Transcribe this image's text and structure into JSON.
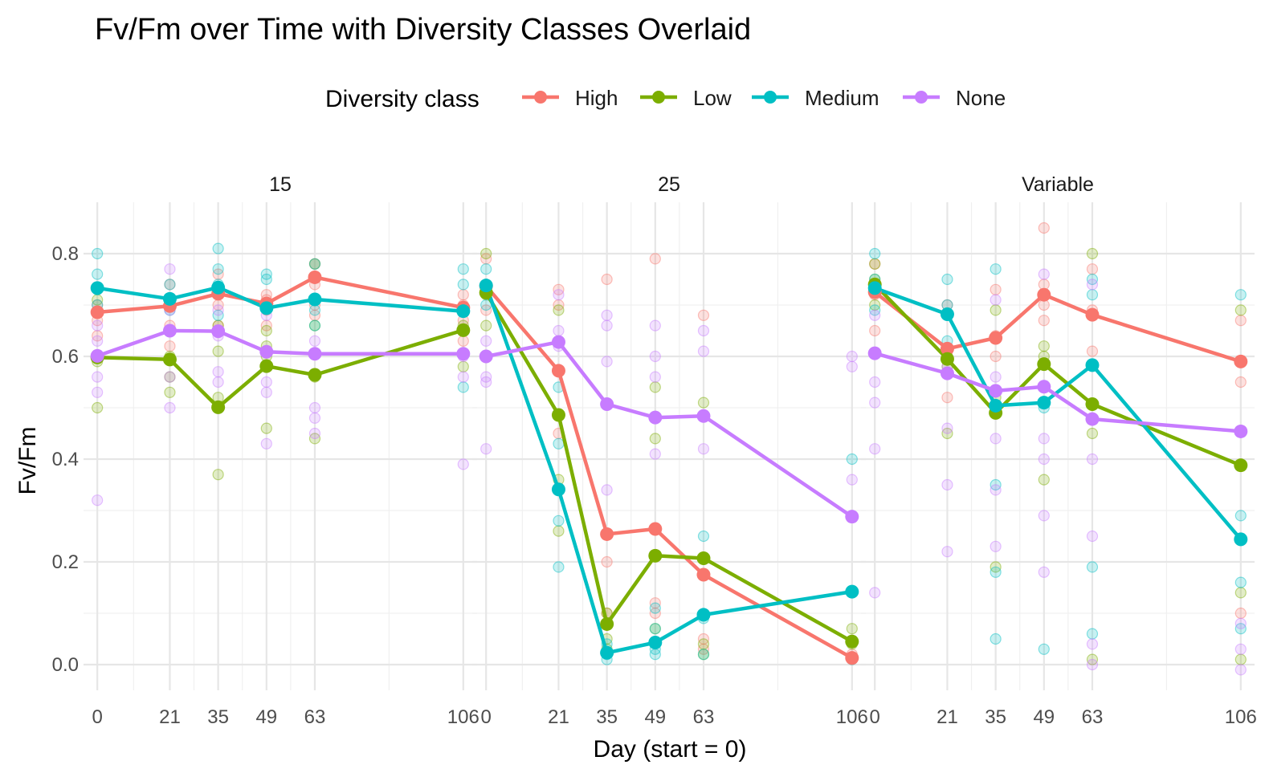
{
  "chart_data": {
    "type": "line",
    "title": "Fv/Fm over Time with Diversity Classes Overlaid",
    "xlabel": "Day (start = 0)",
    "ylabel": "Fv/Fm",
    "legend": {
      "title": "Diversity class",
      "placement": "top",
      "entries": [
        "High",
        "Low",
        "Medium",
        "None"
      ]
    },
    "colors": {
      "High": "#F8766D",
      "Low": "#7CAE00",
      "Medium": "#00BFC4",
      "None": "#C77CFF"
    },
    "x_ticks": [
      0,
      21,
      35,
      49,
      63,
      106
    ],
    "x_tick_labels": [
      "0",
      "21",
      "35",
      "49",
      "63",
      "106"
    ],
    "xlim": [
      -4,
      110
    ],
    "y_ticks": [
      0.0,
      0.2,
      0.4,
      0.6,
      0.8
    ],
    "y_tick_labels": [
      "0.0",
      "0.2",
      "0.4",
      "0.6",
      "0.8"
    ],
    "ylim": [
      -0.05,
      0.9
    ],
    "grid": true,
    "panels": [
      {
        "label": "15",
        "series": [
          {
            "name": "High",
            "x": [
              0,
              21,
              35,
              49,
              63,
              106
            ],
            "y": [
              0.686,
              0.698,
              0.722,
              0.703,
              0.754,
              0.695
            ]
          },
          {
            "name": "Low",
            "x": [
              0,
              21,
              35,
              49,
              63,
              106
            ],
            "y": [
              0.598,
              0.594,
              0.501,
              0.581,
              0.564,
              0.651
            ]
          },
          {
            "name": "Medium",
            "x": [
              0,
              21,
              35,
              49,
              63,
              106
            ],
            "y": [
              0.733,
              0.712,
              0.734,
              0.694,
              0.711,
              0.688
            ]
          },
          {
            "name": "None",
            "x": [
              0,
              21,
              35,
              49,
              63,
              106
            ],
            "y": [
              0.601,
              0.65,
              0.649,
              0.609,
              0.605,
              0.605
            ]
          }
        ],
        "individual_points": [
          {
            "series": "High",
            "x": [
              0,
              0,
              0,
              21,
              21,
              21,
              21,
              35,
              35,
              35,
              35,
              49,
              49,
              49,
              49,
              63,
              63,
              63,
              63,
              106,
              106,
              106,
              106
            ],
            "y": [
              0.64,
              0.67,
              0.7,
              0.62,
              0.66,
              0.7,
              0.74,
              0.66,
              0.7,
              0.73,
              0.76,
              0.66,
              0.69,
              0.71,
              0.72,
              0.68,
              0.7,
              0.74,
              0.78,
              0.63,
              0.67,
              0.7,
              0.72
            ]
          },
          {
            "series": "Low",
            "x": [
              0,
              0,
              0,
              21,
              21,
              21,
              35,
              35,
              35,
              35,
              49,
              49,
              49,
              49,
              63,
              63,
              63,
              63,
              106,
              106,
              106
            ],
            "y": [
              0.5,
              0.59,
              0.71,
              0.53,
              0.56,
              0.6,
              0.37,
              0.52,
              0.61,
              0.66,
              0.46,
              0.6,
              0.65,
              0.62,
              0.44,
              0.56,
              0.66,
              0.78,
              0.58,
              0.65,
              0.66
            ]
          },
          {
            "series": "Medium",
            "x": [
              0,
              0,
              0,
              0,
              21,
              21,
              21,
              35,
              35,
              35,
              35,
              49,
              49,
              49,
              63,
              63,
              63,
              106,
              106,
              106,
              106
            ],
            "y": [
              0.8,
              0.76,
              0.73,
              0.7,
              0.74,
              0.71,
              0.69,
              0.81,
              0.77,
              0.74,
              0.68,
              0.76,
              0.75,
              0.7,
              0.78,
              0.69,
              0.66,
              0.77,
              0.74,
              0.69,
              0.54
            ]
          },
          {
            "series": "None",
            "x": [
              0,
              0,
              0,
              0,
              0,
              21,
              21,
              21,
              21,
              35,
              35,
              35,
              35,
              49,
              49,
              49,
              49,
              63,
              63,
              63,
              63,
              106,
              106,
              106
            ],
            "y": [
              0.32,
              0.53,
              0.56,
              0.63,
              0.66,
              0.5,
              0.56,
              0.69,
              0.77,
              0.55,
              0.57,
              0.64,
              0.69,
              0.43,
              0.53,
              0.55,
              0.68,
              0.45,
              0.48,
              0.5,
              0.63,
              0.39,
              0.56,
              0.6
            ]
          }
        ]
      },
      {
        "label": "25",
        "series": [
          {
            "name": "High",
            "x": [
              0,
              21,
              35,
              49,
              63,
              106
            ],
            "y": [
              0.737,
              0.572,
              0.254,
              0.264,
              0.175,
              0.013
            ]
          },
          {
            "name": "Low",
            "x": [
              0,
              21,
              35,
              49,
              63,
              106
            ],
            "y": [
              0.724,
              0.486,
              0.079,
              0.212,
              0.207,
              0.045
            ]
          },
          {
            "name": "Medium",
            "x": [
              0,
              21,
              35,
              49,
              63,
              106
            ],
            "y": [
              0.738,
              0.341,
              0.023,
              0.043,
              0.097,
              0.142
            ]
          },
          {
            "name": "None",
            "x": [
              0,
              21,
              35,
              49,
              63,
              106
            ],
            "y": [
              0.6,
              0.628,
              0.507,
              0.481,
              0.484,
              0.288
            ]
          }
        ],
        "individual_points": [
          {
            "series": "High",
            "x": [
              0,
              0,
              0,
              21,
              21,
              21,
              35,
              35,
              35,
              49,
              49,
              49,
              63,
              63,
              63,
              106,
              106
            ],
            "y": [
              0.79,
              0.74,
              0.69,
              0.73,
              0.7,
              0.45,
              0.75,
              0.2,
              0.1,
              0.79,
              0.12,
              0.1,
              0.68,
              0.05,
              0.03,
              0.02,
              0.01
            ]
          },
          {
            "series": "Low",
            "x": [
              0,
              0,
              0,
              21,
              21,
              21,
              35,
              35,
              35,
              49,
              49,
              49,
              63,
              63,
              63,
              106,
              106
            ],
            "y": [
              0.8,
              0.72,
              0.66,
              0.69,
              0.36,
              0.26,
              0.1,
              0.05,
              0.03,
              0.54,
              0.44,
              0.07,
              0.51,
              0.04,
              0.02,
              0.07,
              0.04
            ]
          },
          {
            "series": "Medium",
            "x": [
              0,
              0,
              0,
              21,
              21,
              21,
              21,
              35,
              35,
              35,
              49,
              49,
              49,
              49,
              63,
              63,
              63,
              106,
              106
            ],
            "y": [
              0.77,
              0.74,
              0.7,
              0.54,
              0.43,
              0.28,
              0.19,
              0.04,
              0.02,
              0.01,
              0.11,
              0.07,
              0.03,
              0.02,
              0.25,
              0.09,
              0.02,
              0.4,
              0.01
            ]
          },
          {
            "series": "None",
            "x": [
              0,
              0,
              0,
              0,
              21,
              21,
              21,
              35,
              35,
              35,
              35,
              49,
              49,
              49,
              49,
              63,
              63,
              63,
              106,
              106,
              106
            ],
            "y": [
              0.63,
              0.56,
              0.55,
              0.42,
              0.72,
              0.65,
              0.62,
              0.68,
              0.66,
              0.59,
              0.34,
              0.66,
              0.6,
              0.56,
              0.41,
              0.65,
              0.61,
              0.42,
              0.6,
              0.58,
              0.36
            ]
          }
        ]
      },
      {
        "label": "Variable",
        "series": [
          {
            "name": "High",
            "x": [
              0,
              21,
              35,
              49,
              63,
              106
            ],
            "y": [
              0.725,
              0.615,
              0.636,
              0.72,
              0.681,
              0.59
            ]
          },
          {
            "name": "Low",
            "x": [
              0,
              21,
              35,
              49,
              63,
              106
            ],
            "y": [
              0.74,
              0.595,
              0.49,
              0.585,
              0.507,
              0.388
            ]
          },
          {
            "name": "Medium",
            "x": [
              0,
              21,
              35,
              49,
              63,
              106
            ],
            "y": [
              0.733,
              0.682,
              0.504,
              0.51,
              0.583,
              0.244
            ]
          },
          {
            "name": "None",
            "x": [
              0,
              21,
              35,
              49,
              63,
              106
            ],
            "y": [
              0.606,
              0.567,
              0.533,
              0.541,
              0.478,
              0.454
            ]
          }
        ],
        "individual_points": [
          {
            "series": "High",
            "x": [
              0,
              0,
              0,
              21,
              21,
              21,
              35,
              35,
              35,
              49,
              49,
              49,
              49,
              63,
              63,
              63,
              106,
              106,
              106
            ],
            "y": [
              0.78,
              0.72,
              0.65,
              0.7,
              0.61,
              0.52,
              0.73,
              0.64,
              0.6,
              0.85,
              0.74,
              0.7,
              0.67,
              0.77,
              0.69,
              0.61,
              0.67,
              0.55,
              0.1
            ]
          },
          {
            "series": "Low",
            "x": [
              0,
              0,
              0,
              21,
              21,
              21,
              35,
              35,
              35,
              49,
              49,
              49,
              63,
              63,
              63,
              106,
              106,
              106
            ],
            "y": [
              0.78,
              0.75,
              0.7,
              0.6,
              0.58,
              0.45,
              0.69,
              0.52,
              0.19,
              0.62,
              0.6,
              0.36,
              0.8,
              0.45,
              0.01,
              0.69,
              0.14,
              0.01
            ]
          },
          {
            "series": "Medium",
            "x": [
              0,
              0,
              0,
              21,
              21,
              21,
              35,
              35,
              35,
              35,
              49,
              49,
              63,
              63,
              63,
              63,
              106,
              106,
              106,
              106
            ],
            "y": [
              0.8,
              0.75,
              0.69,
              0.75,
              0.7,
              0.63,
              0.77,
              0.35,
              0.18,
              0.05,
              0.5,
              0.03,
              0.75,
              0.72,
              0.19,
              0.06,
              0.72,
              0.29,
              0.16,
              0.07
            ]
          },
          {
            "series": "None",
            "x": [
              0,
              0,
              0,
              0,
              0,
              21,
              21,
              21,
              21,
              35,
              35,
              35,
              35,
              35,
              49,
              49,
              49,
              49,
              49,
              63,
              63,
              63,
              63,
              63,
              106,
              106,
              106
            ],
            "y": [
              0.68,
              0.55,
              0.51,
              0.42,
              0.14,
              0.58,
              0.46,
              0.35,
              0.22,
              0.71,
              0.56,
              0.44,
              0.34,
              0.23,
              0.76,
              0.44,
              0.4,
              0.29,
              0.18,
              0.74,
              0.4,
              0.25,
              0.04,
              0.0,
              0.08,
              0.03,
              -0.01
            ]
          }
        ]
      }
    ]
  }
}
